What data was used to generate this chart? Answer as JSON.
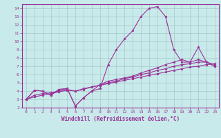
{
  "title": "",
  "xlabel": "Windchill (Refroidissement éolien,°C)",
  "ylabel": "",
  "bg_color": "#c8eaea",
  "line_color": "#993399",
  "marker": "*",
  "xlim": [
    -0.5,
    23.5
  ],
  "ylim": [
    2,
    14.5
  ],
  "xticks": [
    0,
    1,
    2,
    3,
    4,
    5,
    6,
    7,
    8,
    9,
    10,
    11,
    12,
    13,
    14,
    15,
    16,
    17,
    18,
    19,
    20,
    21,
    22,
    23
  ],
  "yticks": [
    2,
    3,
    4,
    5,
    6,
    7,
    8,
    9,
    10,
    11,
    12,
    13,
    14
  ],
  "series": [
    [
      3.0,
      4.1,
      4.0,
      3.5,
      4.2,
      4.3,
      2.2,
      3.2,
      4.0,
      4.3,
      7.2,
      9.0,
      10.3,
      11.3,
      13.0,
      14.0,
      14.2,
      13.0,
      9.0,
      7.5,
      7.5,
      9.3,
      7.5,
      7.0
    ],
    [
      3.0,
      4.1,
      4.0,
      3.5,
      4.2,
      4.3,
      2.2,
      3.2,
      4.0,
      4.8,
      5.2,
      5.4,
      5.6,
      5.8,
      6.2,
      6.5,
      6.8,
      7.2,
      7.5,
      7.8,
      7.5,
      7.8,
      7.5,
      7.0
    ],
    [
      3.0,
      3.5,
      3.7,
      3.8,
      4.0,
      4.2,
      4.0,
      4.3,
      4.5,
      4.7,
      5.0,
      5.2,
      5.5,
      5.7,
      6.0,
      6.2,
      6.5,
      6.7,
      7.0,
      7.2,
      7.3,
      7.5,
      7.5,
      7.2
    ],
    [
      3.0,
      3.3,
      3.5,
      3.7,
      3.9,
      4.1,
      4.0,
      4.2,
      4.5,
      4.7,
      4.9,
      5.1,
      5.3,
      5.5,
      5.7,
      5.9,
      6.1,
      6.3,
      6.5,
      6.7,
      6.9,
      7.0,
      7.2,
      7.3
    ]
  ]
}
